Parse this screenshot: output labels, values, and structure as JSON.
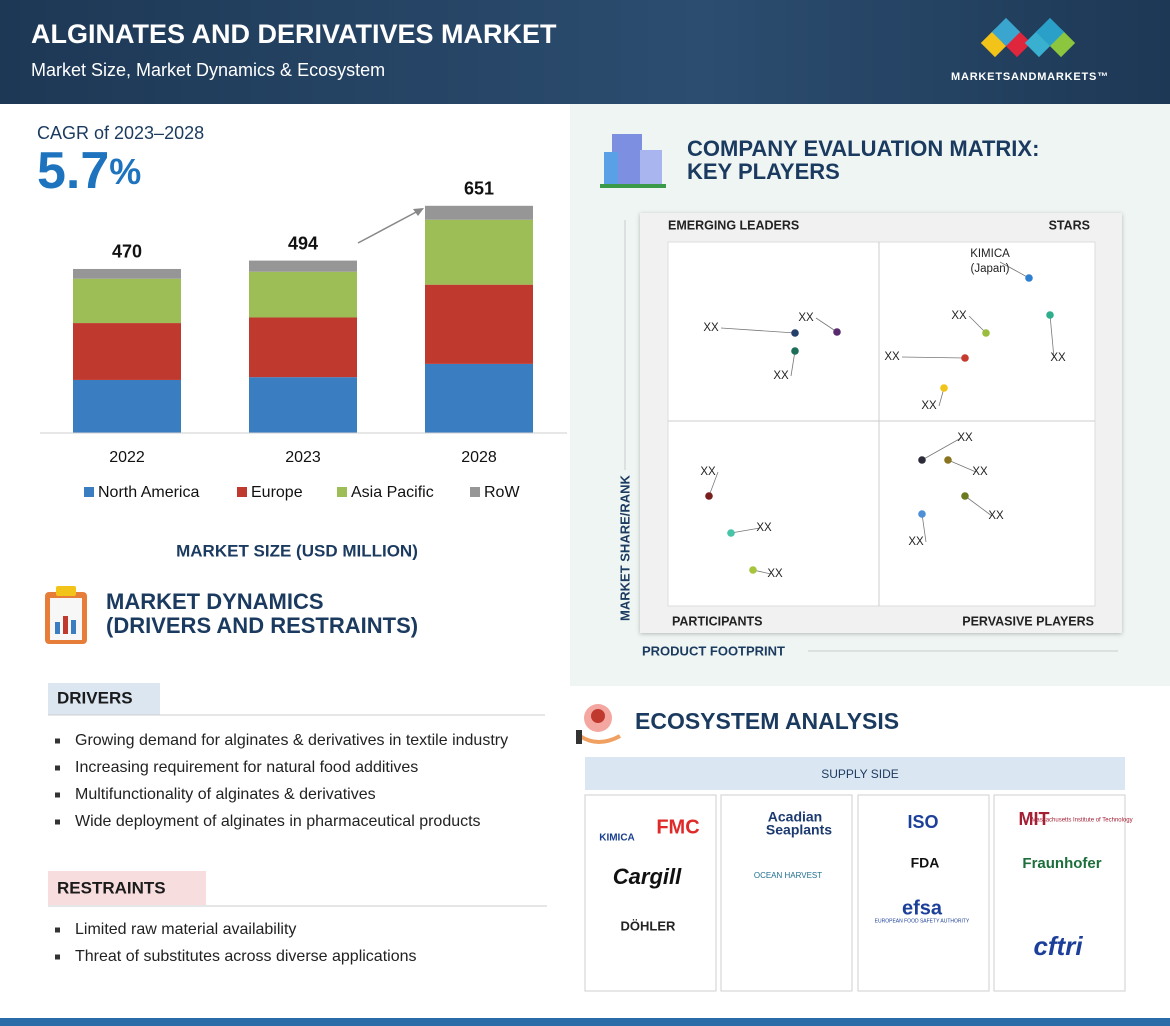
{
  "header": {
    "title": "ALGINATES AND DERIVATIVES MARKET",
    "subtitle": "Market Size, Market Dynamics & Ecosystem",
    "brand": "MARKETSANDMARKETS™"
  },
  "cagr": {
    "label": "CAGR of 2023–2028",
    "value": 5.7,
    "unit": "%"
  },
  "chart_data": {
    "type": "stacked_bar",
    "title": "MARKET SIZE (USD MILLION)",
    "categories": [
      "2022",
      "2023",
      "2028"
    ],
    "totals": [
      470,
      494,
      651
    ],
    "series": [
      {
        "name": "North America",
        "color": "#3b7dc1",
        "values": [
          152,
          160,
          198
        ]
      },
      {
        "name": "Europe",
        "color": "#c0392e",
        "values": [
          163,
          171,
          227
        ]
      },
      {
        "name": "Asia Pacific",
        "color": "#9dbd56",
        "values": [
          127,
          131,
          186
        ]
      },
      {
        "name": "RoW",
        "color": "#969696",
        "values": [
          28,
          32,
          40
        ]
      }
    ]
  },
  "dynamics": {
    "title": [
      "MARKET DYNAMICS",
      "(DRIVERS AND RESTRAINTS)"
    ],
    "drivers": {
      "label": "DRIVERS",
      "items": [
        "Growing demand for alginates & derivatives in textile industry",
        "Increasing requirement for natural food additives",
        "Multifunctionality of alginates & derivatives",
        "Wide deployment of alginates in pharmaceutical products"
      ]
    },
    "restraints": {
      "label": "RESTRAINTS",
      "items": [
        "Limited raw material availability",
        "Threat of substitutes across diverse applications"
      ]
    }
  },
  "matrix": {
    "title": [
      "COMPANY EVALUATION MATRIX:",
      "KEY PLAYERS"
    ],
    "quadrants": [
      "EMERGING LEADERS",
      "STARS",
      "PARTICIPANTS",
      "PERVASIVE PLAYERS"
    ],
    "y_label": "MARKET SHARE/RANK",
    "x_label": "PRODUCT FOOTPRINT",
    "points": [
      {
        "label": "KIMICA",
        "sublabel": "(Japan)",
        "color": "#2f7fd0"
      },
      {
        "label": "XX",
        "color": "#24406b"
      },
      {
        "label": "XX",
        "color": "#5a2a6e"
      },
      {
        "label": "XX",
        "color": "#1f6e5a"
      },
      {
        "label": "XX",
        "color": "#9bbd3c"
      },
      {
        "label": "XX",
        "color": "#2fae8c"
      },
      {
        "label": "XX",
        "color": "#c63a2f"
      },
      {
        "label": "XX",
        "color": "#f0c419"
      },
      {
        "label": "XX",
        "color": "#2b2b3a"
      },
      {
        "label": "XX",
        "color": "#8a7420"
      },
      {
        "label": "XX",
        "color": "#6b7a1e"
      },
      {
        "label": "XX",
        "color": "#4f8fd6"
      },
      {
        "label": "XX",
        "color": "#7a1e1e"
      },
      {
        "label": "XX",
        "color": "#46c4a8"
      },
      {
        "label": "XX",
        "color": "#a6c43c"
      }
    ]
  },
  "ecosystem": {
    "title": "ECOSYSTEM ANALYSIS",
    "side": "SUPPLY SIDE",
    "columns": [
      [
        "KIMICA",
        "FMC",
        "Cargill",
        "DÖHLER"
      ],
      [
        "Acadian",
        "Seaplants",
        "OCEAN HARVEST"
      ],
      [
        "ISO",
        "FDA",
        "efsa",
        "EUROPEAN FOOD SAFETY AUTHORITY"
      ],
      [
        "MIT",
        "Massachusetts Institute of Technology",
        "Fraunhofer",
        "cftri"
      ]
    ]
  }
}
